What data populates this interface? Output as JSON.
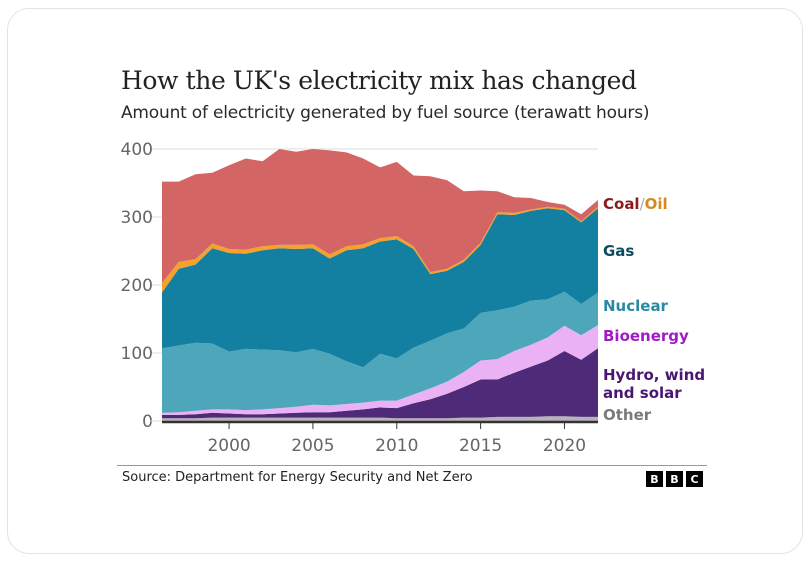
{
  "card": {
    "title": "How the UK's electricity mix has changed",
    "subtitle": "Amount of electricity generated by fuel source (terawatt hours)",
    "source": "Source: Department for Energy Security and Net Zero",
    "logo_letters": [
      "B",
      "B",
      "C"
    ]
  },
  "chart_data": {
    "type": "area",
    "stacked": true,
    "title": "How the UK's electricity mix has changed",
    "subtitle": "Amount of electricity generated by fuel source (terawatt hours)",
    "xlabel": "",
    "ylabel": "TWh",
    "x": [
      1996,
      1997,
      1998,
      1999,
      2000,
      2001,
      2002,
      2003,
      2004,
      2005,
      2006,
      2007,
      2008,
      2009,
      2010,
      2011,
      2012,
      2013,
      2014,
      2015,
      2016,
      2017,
      2018,
      2019,
      2020,
      2021,
      2022
    ],
    "xlim": [
      1996,
      2022
    ],
    "ylim": [
      0,
      400
    ],
    "x_ticks": [
      "2000",
      "2005",
      "2010",
      "2015",
      "2020"
    ],
    "x_tick_values": [
      2000,
      2005,
      2010,
      2015,
      2020
    ],
    "y_ticks": [
      "0",
      "100",
      "200",
      "300",
      "400"
    ],
    "y_tick_values": [
      0,
      100,
      200,
      300,
      400
    ],
    "grid": true,
    "legend_placement": "right, inline labels",
    "series": [
      {
        "name": "Other",
        "color": "#b8b3ba",
        "values": [
          4,
          4,
          4,
          5,
          5,
          5,
          5,
          5,
          5,
          5,
          5,
          5,
          5,
          5,
          4,
          4,
          4,
          4,
          5,
          5,
          6,
          6,
          6,
          7,
          7,
          6,
          6
        ]
      },
      {
        "name": "Hydro, wind and solar",
        "color": "#4e2a78",
        "values": [
          5,
          5,
          6,
          7,
          6,
          5,
          5,
          6,
          7,
          8,
          8,
          10,
          12,
          15,
          15,
          22,
          28,
          36,
          45,
          56,
          55,
          65,
          74,
          82,
          96,
          84,
          101
        ]
      },
      {
        "name": "Bioenergy",
        "color": "#eab2f5",
        "values": [
          3,
          4,
          5,
          5,
          6,
          6,
          7,
          8,
          9,
          11,
          10,
          10,
          10,
          10,
          11,
          13,
          16,
          18,
          22,
          28,
          30,
          32,
          32,
          34,
          37,
          36,
          34
        ]
      },
      {
        "name": "Nuclear",
        "color": "#4ea6bb",
        "values": [
          95,
          98,
          100,
          97,
          85,
          90,
          88,
          85,
          80,
          82,
          76,
          63,
          52,
          69,
          62,
          69,
          70,
          71,
          64,
          70,
          72,
          65,
          65,
          56,
          50,
          46,
          48
        ]
      },
      {
        "name": "Gas",
        "color": "#1380a1",
        "values": [
          82,
          113,
          115,
          140,
          145,
          140,
          146,
          150,
          152,
          148,
          140,
          163,
          175,
          165,
          175,
          145,
          98,
          92,
          98,
          100,
          141,
          135,
          132,
          134,
          120,
          120,
          124
        ]
      },
      {
        "name": "Oil",
        "color": "#f5a12b",
        "values": [
          14,
          10,
          8,
          7,
          6,
          6,
          6,
          5,
          6,
          6,
          6,
          6,
          6,
          5,
          5,
          4,
          3,
          3,
          3,
          3,
          3,
          3,
          2,
          2,
          2,
          2,
          2
        ]
      },
      {
        "name": "Coal",
        "color": "#d46565",
        "values": [
          149,
          118,
          125,
          104,
          123,
          134,
          125,
          141,
          137,
          140,
          153,
          138,
          126,
          104,
          109,
          104,
          141,
          130,
          101,
          77,
          31,
          23,
          17,
          7,
          6,
          10,
          10
        ]
      }
    ],
    "totals_approx": [
      352,
      352,
      363,
      365,
      376,
      386,
      382,
      400,
      396,
      400,
      398,
      395,
      386,
      373,
      381,
      361,
      360,
      354,
      338,
      339,
      338,
      329,
      328,
      322,
      318,
      304,
      325
    ],
    "annotations": [
      {
        "text": "Coal",
        "series": "Coal",
        "color": "#8b1a1a"
      },
      {
        "text": "/",
        "color": "#aaaaaa"
      },
      {
        "text": "Oil",
        "series": "Oil",
        "color": "#d48a1e"
      },
      {
        "text": "Gas",
        "series": "Gas",
        "color": "#0f4a5e"
      },
      {
        "text": "Nuclear",
        "series": "Nuclear",
        "color": "#2a8aa6"
      },
      {
        "text": "Bioenergy",
        "series": "Bioenergy",
        "color": "#a01ac8"
      },
      {
        "text": "Hydro, wind and solar",
        "series": "Hydro, wind and solar",
        "color": "#4b1673"
      },
      {
        "text": "Other",
        "series": "Other",
        "color": "#7a7a7a"
      }
    ]
  },
  "legend": {
    "coal": "Coal",
    "slash": "/",
    "oil": "Oil",
    "gas": "Gas",
    "nuclear": "Nuclear",
    "bioenergy": "Bioenergy",
    "hydro_line1": "Hydro, wind",
    "hydro_line2": "and solar",
    "other": "Other"
  }
}
